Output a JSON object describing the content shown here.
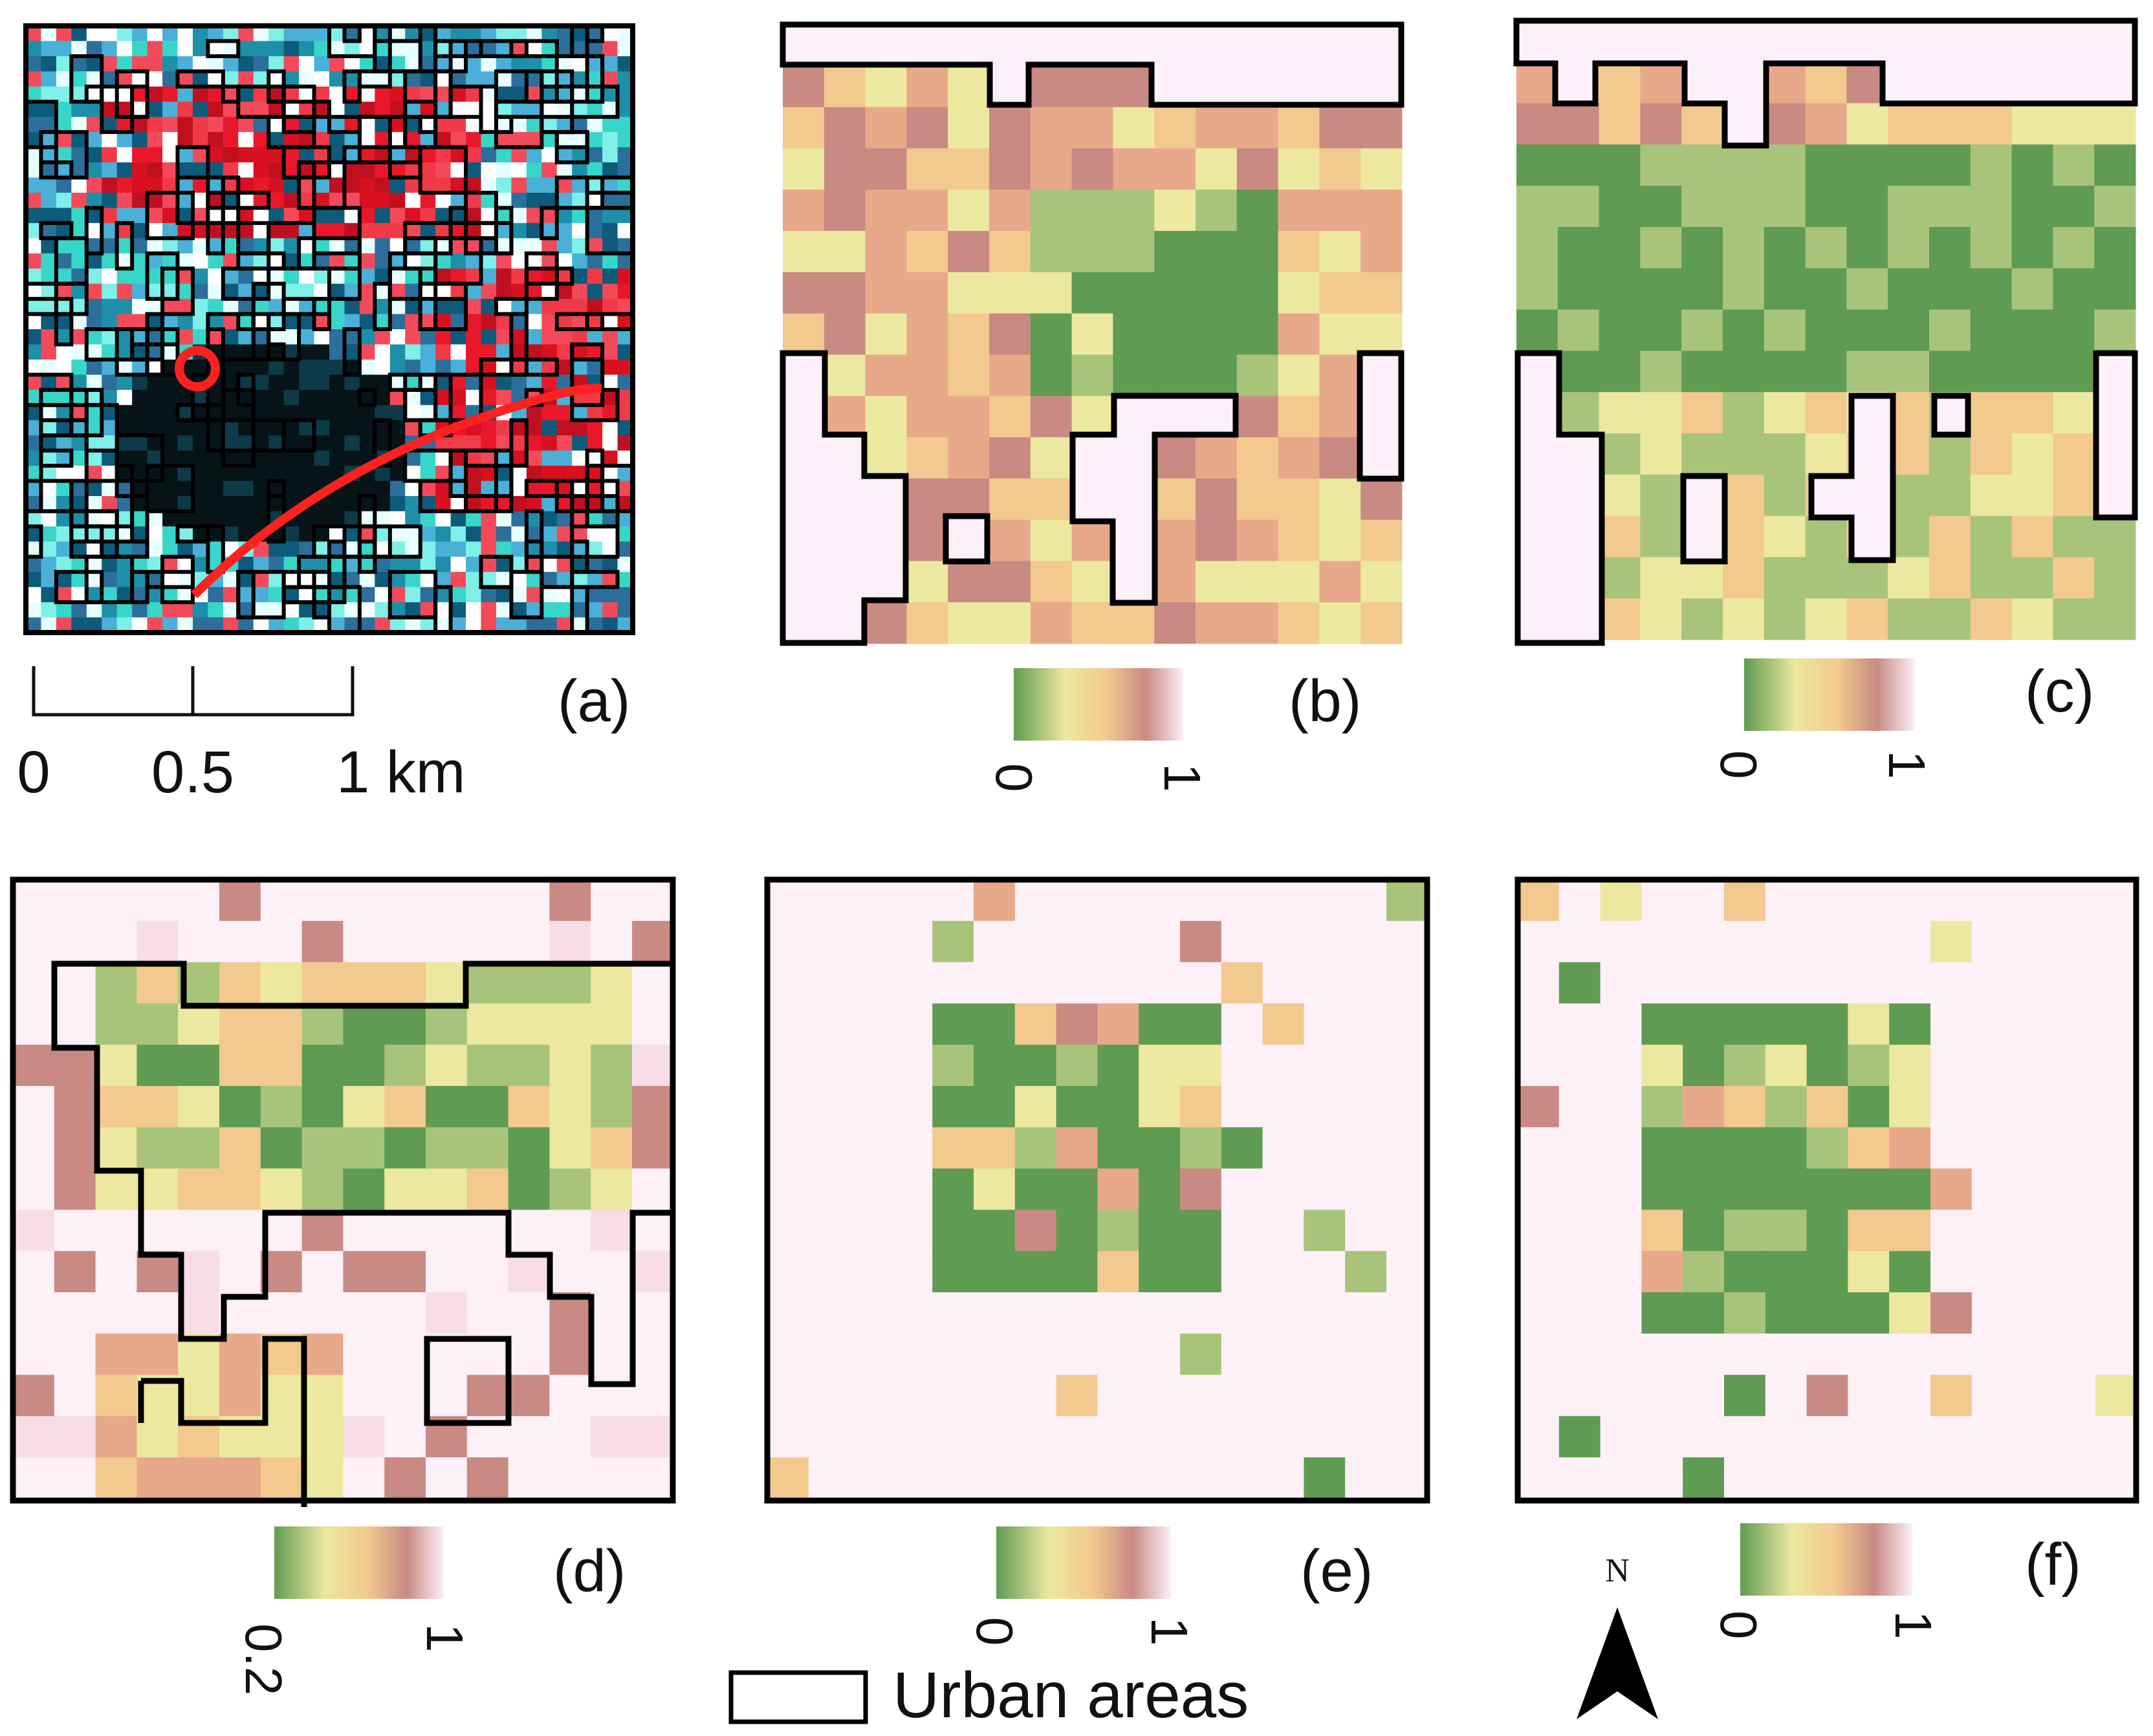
{
  "panels": [
    {
      "id": "a",
      "label": "(a)"
    },
    {
      "id": "b",
      "label": "(b)"
    },
    {
      "id": "c",
      "label": "(c)"
    },
    {
      "id": "d",
      "label": "(d)"
    },
    {
      "id": "e",
      "label": "(e)"
    },
    {
      "id": "f",
      "label": "(f)"
    }
  ],
  "scale_bar": {
    "ticks": [
      "0",
      "0.5",
      "1 km"
    ]
  },
  "colorbars": [
    {
      "panel": "b",
      "min_label": "0",
      "max_label": "1"
    },
    {
      "panel": "c",
      "min_label": "0",
      "max_label": "1"
    },
    {
      "panel": "d",
      "min_label": "0.2",
      "max_label": "1"
    },
    {
      "panel": "e",
      "min_label": "0",
      "max_label": "1"
    },
    {
      "panel": "f",
      "min_label": "0",
      "max_label": "1"
    }
  ],
  "legend": {
    "urban_label": "Urban areas"
  },
  "north_arrow": {
    "label": "N"
  },
  "colors": {
    "ramp": [
      "#5f9b52",
      "#a8c47a",
      "#ece8a0",
      "#f2c98e",
      "#e8a88a",
      "#c98a84",
      "#f7dde8",
      "#fdf0f7"
    ],
    "urban_fill": "#fdf0f8",
    "boundary": "#000000"
  }
}
